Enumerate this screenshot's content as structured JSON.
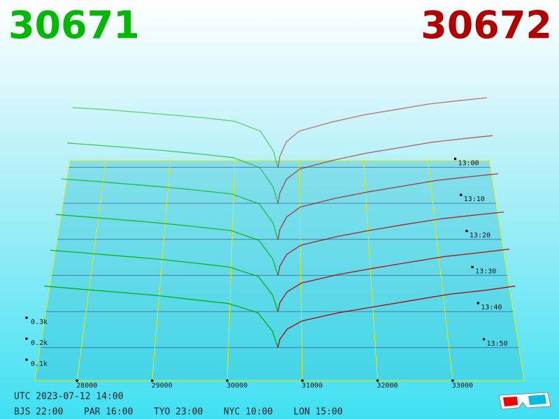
{
  "chart_data": {
    "type": "depth3d",
    "bid_price": 30671,
    "ask_price": 30672,
    "bid_color": "#00b000",
    "ask_color": "#b00000",
    "xlim": [
      27440,
      33950
    ],
    "xticks": [
      28000,
      29000,
      30000,
      31000,
      32000,
      33000
    ],
    "zticks": [
      {
        "value": 100,
        "label": "0.1k"
      },
      {
        "value": 200,
        "label": "0.2k"
      },
      {
        "value": 300,
        "label": "0.3k"
      }
    ],
    "bid_prices": [
      27500,
      28000,
      28500,
      29000,
      29500,
      30000,
      30400,
      30600,
      30671
    ],
    "ask_prices": [
      30672,
      30700,
      30800,
      31000,
      31500,
      32000,
      32500,
      33000,
      33500,
      33900
    ],
    "series": [
      {
        "name": "13:00",
        "bids": [
          330,
          320,
          305,
          290,
          275,
          255,
          200,
          90,
          0
        ],
        "asks": [
          0,
          60,
          140,
          200,
          250,
          290,
          320,
          350,
          370,
          385
        ]
      },
      {
        "name": "13:10",
        "bids": [
          325,
          312,
          298,
          283,
          266,
          246,
          192,
          88,
          0
        ],
        "asks": [
          0,
          55,
          130,
          185,
          232,
          270,
          300,
          330,
          350,
          365
        ]
      },
      {
        "name": "13:20",
        "bids": [
          318,
          305,
          290,
          275,
          258,
          238,
          186,
          86,
          0
        ],
        "asks": [
          0,
          52,
          118,
          170,
          215,
          250,
          280,
          310,
          330,
          345
        ]
      },
      {
        "name": "13:30",
        "bids": [
          312,
          298,
          283,
          268,
          250,
          230,
          180,
          84,
          0
        ],
        "asks": [
          0,
          48,
          108,
          155,
          198,
          232,
          262,
          290,
          310,
          325
        ]
      },
      {
        "name": "13:40",
        "bids": [
          306,
          292,
          277,
          262,
          243,
          222,
          175,
          82,
          0
        ],
        "asks": [
          0,
          44,
          98,
          142,
          184,
          216,
          246,
          275,
          295,
          312
        ]
      },
      {
        "name": "13:50",
        "bids": [
          300,
          285,
          270,
          255,
          235,
          215,
          170,
          80,
          0
        ],
        "asks": [
          0,
          40,
          90,
          130,
          170,
          200,
          230,
          260,
          280,
          300
        ]
      }
    ]
  },
  "footer": {
    "utc": "UTC 2023-07-12 14:00",
    "zones": [
      "BJS 22:00",
      "PAR 16:00",
      "TYO 23:00",
      "NYC 10:00",
      "LON 15:00"
    ]
  }
}
